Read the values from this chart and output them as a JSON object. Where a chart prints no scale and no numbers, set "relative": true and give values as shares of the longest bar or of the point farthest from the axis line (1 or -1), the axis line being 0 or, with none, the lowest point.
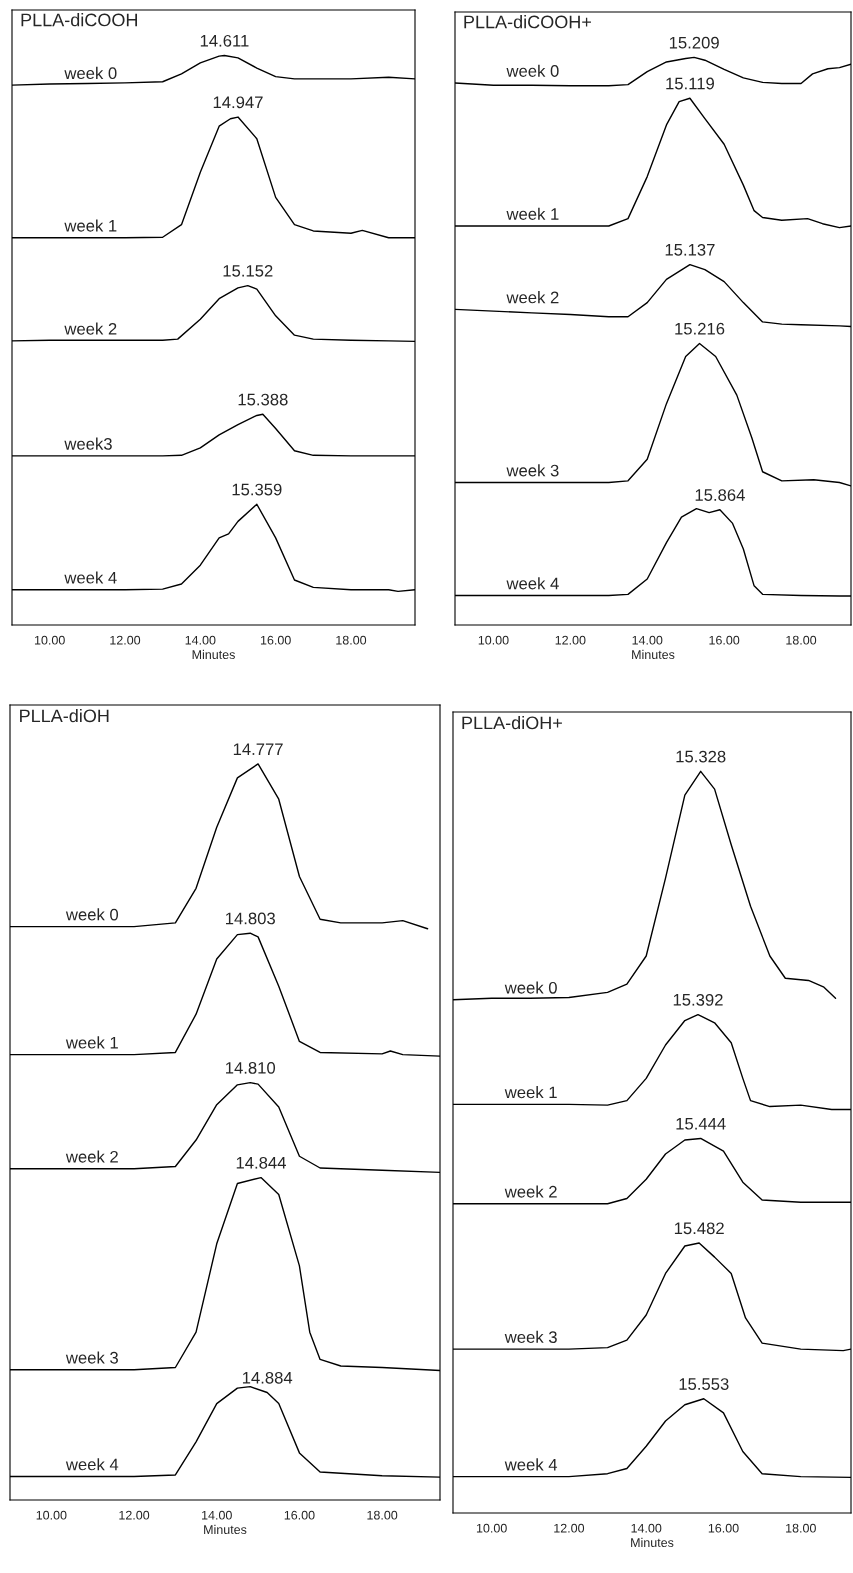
{
  "chart_data": [
    {
      "type": "line",
      "title": "PLLA-diCOOH",
      "xlabel": "Minutes",
      "relative": true,
      "xlim": [
        9.0,
        19.7
      ],
      "xticks": [
        {
          "value": 10,
          "label": "10.00"
        },
        {
          "value": 12,
          "label": "12.00"
        },
        {
          "value": 14,
          "label": "14.00"
        },
        {
          "value": 16,
          "label": "16.00"
        },
        {
          "value": 18,
          "label": "18.00"
        }
      ],
      "tick_labels": "x",
      "grid": false,
      "legend": false,
      "series": [
        {
          "name": "week 0",
          "color": "#000000",
          "x": [
            9.0,
            10,
            11,
            12,
            13,
            13.5,
            14,
            14.5,
            14.64,
            15,
            15.5,
            16,
            16.5,
            17,
            18,
            19,
            19.7
          ],
          "values": [
            0.948,
            0.95,
            0.951,
            0.952,
            0.954,
            0.968,
            0.987,
            0.999,
            1.0,
            0.996,
            0.978,
            0.963,
            0.959,
            0.959,
            0.959,
            0.962,
            0.959
          ]
        },
        {
          "name": "week 1",
          "color": "#000000",
          "x": [
            9.0,
            10,
            11,
            12,
            13,
            13.5,
            14,
            14.5,
            14.8,
            15.0,
            15.5,
            16,
            16.5,
            17,
            18,
            18.3,
            19,
            19.7
          ],
          "values": [
            0.68,
            0.68,
            0.68,
            0.68,
            0.681,
            0.703,
            0.795,
            0.876,
            0.889,
            0.892,
            0.854,
            0.751,
            0.703,
            0.692,
            0.688,
            0.693,
            0.68,
            0.68
          ]
        },
        {
          "name": "week 2",
          "color": "#000000",
          "x": [
            9.0,
            10,
            11,
            12,
            13,
            13.4,
            14,
            14.5,
            15,
            15.26,
            15.5,
            16,
            16.5,
            17,
            18,
            19,
            19.7
          ],
          "values": [
            0.499,
            0.5,
            0.5,
            0.5,
            0.5,
            0.502,
            0.537,
            0.573,
            0.592,
            0.596,
            0.59,
            0.543,
            0.509,
            0.502,
            0.5,
            0.499,
            0.498
          ]
        },
        {
          "name": "week3",
          "color": "#000000",
          "x": [
            9.0,
            10,
            11,
            12,
            13,
            13.5,
            14,
            14.5,
            15,
            15.5,
            15.66,
            16,
            16.5,
            17,
            18,
            19,
            19.7
          ],
          "values": [
            0.297,
            0.297,
            0.297,
            0.297,
            0.297,
            0.298,
            0.311,
            0.334,
            0.352,
            0.368,
            0.37,
            0.345,
            0.306,
            0.298,
            0.297,
            0.297,
            0.297
          ]
        },
        {
          "name": "week 4",
          "color": "#000000",
          "x": [
            9.0,
            10,
            11,
            12,
            13,
            13.5,
            14,
            14.5,
            14.75,
            15,
            15.5,
            16,
            16.5,
            17,
            18,
            19,
            19.25,
            19.7
          ],
          "values": [
            0.062,
            0.062,
            0.062,
            0.062,
            0.063,
            0.072,
            0.105,
            0.153,
            0.16,
            0.182,
            0.212,
            0.153,
            0.079,
            0.066,
            0.062,
            0.062,
            0.059,
            0.062
          ]
        }
      ],
      "annotations": [
        {
          "text": "14.611",
          "x": 14.64,
          "y": 1.0
        },
        {
          "text": "14.947",
          "x": 15.0,
          "y": 0.892
        },
        {
          "text": "15.152",
          "x": 15.26,
          "y": 0.596
        },
        {
          "text": "15.388",
          "x": 15.66,
          "y": 0.37
        },
        {
          "text": "15.359",
          "x": 15.5,
          "y": 0.212
        }
      ]
    },
    {
      "type": "line",
      "title": "PLLA-diCOOH+",
      "xlabel": "Minutes",
      "relative": true,
      "xlim": [
        9.0,
        19.3
      ],
      "xticks": [
        {
          "value": 10,
          "label": "10.00"
        },
        {
          "value": 12,
          "label": "12.00"
        },
        {
          "value": 14,
          "label": "14.00"
        },
        {
          "value": 16,
          "label": "16.00"
        },
        {
          "value": 18,
          "label": "18.00"
        }
      ],
      "tick_labels": "x",
      "grid": false,
      "legend": false,
      "series": [
        {
          "name": "week 0",
          "color": "#000000",
          "x": [
            9.0,
            10,
            11,
            12,
            13,
            13.5,
            14,
            14.5,
            15,
            15.22,
            15.5,
            16,
            16.5,
            17,
            17.5,
            18,
            18.3,
            18.7,
            19,
            19.3
          ],
          "values": [
            0.955,
            0.951,
            0.951,
            0.95,
            0.95,
            0.952,
            0.975,
            0.992,
            0.998,
            1.0,
            0.995,
            0.979,
            0.964,
            0.956,
            0.954,
            0.954,
            0.971,
            0.98,
            0.982,
            0.988
          ]
        },
        {
          "name": "week 1",
          "color": "#000000",
          "x": [
            9.0,
            10,
            11,
            12,
            13,
            13.5,
            14,
            14.5,
            14.83,
            15.11,
            15.5,
            16,
            16.5,
            16.78,
            17,
            17.5,
            18.17,
            18.56,
            19,
            19.3
          ],
          "values": [
            0.703,
            0.703,
            0.703,
            0.703,
            0.703,
            0.716,
            0.79,
            0.881,
            0.922,
            0.928,
            0.892,
            0.847,
            0.775,
            0.73,
            0.718,
            0.713,
            0.716,
            0.707,
            0.7,
            0.703
          ]
        },
        {
          "name": "week 2",
          "color": "#000000",
          "x": [
            9.0,
            10,
            11,
            12,
            13,
            13.5,
            14,
            14.5,
            15.11,
            15.5,
            16,
            16.5,
            17,
            17.5,
            18,
            19,
            19.3
          ],
          "values": [
            0.556,
            0.553,
            0.55,
            0.547,
            0.543,
            0.543,
            0.568,
            0.609,
            0.635,
            0.626,
            0.605,
            0.568,
            0.534,
            0.53,
            0.529,
            0.527,
            0.526
          ]
        },
        {
          "name": "week 3",
          "color": "#000000",
          "x": [
            9.0,
            10,
            11,
            12,
            13,
            13.5,
            14,
            14.5,
            15,
            15.36,
            15.78,
            16.33,
            16.72,
            17,
            17.5,
            18.33,
            19,
            19.3
          ],
          "values": [
            0.251,
            0.251,
            0.251,
            0.251,
            0.251,
            0.254,
            0.292,
            0.39,
            0.473,
            0.496,
            0.473,
            0.405,
            0.33,
            0.27,
            0.254,
            0.256,
            0.251,
            0.245
          ]
        },
        {
          "name": "week 4",
          "color": "#000000",
          "x": [
            9.0,
            10,
            11,
            12,
            13,
            13.5,
            14,
            14.5,
            14.89,
            15.28,
            15.61,
            15.89,
            16.22,
            16.5,
            16.78,
            17,
            18,
            19,
            19.3
          ],
          "values": [
            0.052,
            0.052,
            0.052,
            0.052,
            0.052,
            0.054,
            0.081,
            0.145,
            0.19,
            0.205,
            0.198,
            0.203,
            0.179,
            0.134,
            0.069,
            0.054,
            0.052,
            0.051,
            0.051
          ]
        }
      ],
      "annotations": [
        {
          "text": "15.209",
          "x": 15.22,
          "y": 1.0
        },
        {
          "text": "15.119",
          "x": 15.11,
          "y": 0.928
        },
        {
          "text": "15.137",
          "x": 15.11,
          "y": 0.635
        },
        {
          "text": "15.216",
          "x": 15.36,
          "y": 0.496
        },
        {
          "text": "15.864",
          "x": 15.89,
          "y": 0.203
        }
      ]
    },
    {
      "type": "line",
      "title": "PLLA-diOH",
      "xlabel": "Minutes",
      "relative": true,
      "xlim": [
        9.0,
        19.4
      ],
      "xticks": [
        {
          "value": 10,
          "label": "10.00"
        },
        {
          "value": 12,
          "label": "12.00"
        },
        {
          "value": 14,
          "label": "14.00"
        },
        {
          "value": 16,
          "label": "16.00"
        },
        {
          "value": 18,
          "label": "18.00"
        }
      ],
      "tick_labels": "x",
      "grid": false,
      "legend": false,
      "series": [
        {
          "name": "week 0",
          "color": "#000000",
          "x": [
            9.0,
            10,
            11,
            12,
            13,
            13.5,
            14,
            14.5,
            15,
            15.5,
            16,
            16.5,
            17,
            18,
            18.5,
            19.1
          ],
          "values": [
            0.779,
            0.779,
            0.779,
            0.779,
            0.784,
            0.831,
            0.914,
            0.981,
            1.0,
            0.952,
            0.847,
            0.789,
            0.784,
            0.784,
            0.787,
            0.776
          ]
        },
        {
          "name": "week 1",
          "color": "#000000",
          "x": [
            9.0,
            10,
            11,
            12,
            13,
            13.5,
            14,
            14.5,
            14.81,
            15,
            15.5,
            16,
            16.5,
            18,
            18.2,
            18.5,
            19.4
          ],
          "values": [
            0.605,
            0.605,
            0.605,
            0.605,
            0.608,
            0.66,
            0.735,
            0.768,
            0.77,
            0.765,
            0.698,
            0.623,
            0.608,
            0.606,
            0.61,
            0.605,
            0.603
          ]
        },
        {
          "name": "week 2",
          "color": "#000000",
          "x": [
            9.0,
            10,
            11,
            12,
            13,
            13.5,
            14,
            14.5,
            14.81,
            15,
            15.5,
            16,
            16.5,
            18,
            19.4
          ],
          "values": [
            0.45,
            0.45,
            0.45,
            0.45,
            0.453,
            0.489,
            0.537,
            0.564,
            0.567,
            0.565,
            0.534,
            0.467,
            0.451,
            0.448,
            0.445
          ]
        },
        {
          "name": "week 3",
          "color": "#000000",
          "x": [
            9.0,
            10,
            11,
            12,
            13,
            13.5,
            14,
            14.5,
            15.07,
            15.5,
            16,
            16.25,
            16.5,
            17,
            18,
            19.4
          ],
          "values": [
            0.177,
            0.177,
            0.177,
            0.177,
            0.18,
            0.228,
            0.348,
            0.43,
            0.438,
            0.415,
            0.318,
            0.228,
            0.191,
            0.182,
            0.18,
            0.176
          ]
        },
        {
          "name": "week 4",
          "color": "#000000",
          "x": [
            9.0,
            10,
            11,
            12,
            13,
            13.5,
            14,
            14.5,
            14.81,
            15.22,
            15.5,
            16,
            16.5,
            18,
            19.4
          ],
          "values": [
            0.032,
            0.032,
            0.032,
            0.032,
            0.034,
            0.079,
            0.131,
            0.152,
            0.154,
            0.146,
            0.131,
            0.064,
            0.038,
            0.033,
            0.031
          ]
        }
      ],
      "annotations": [
        {
          "text": "14.777",
          "x": 15.0,
          "y": 1.0
        },
        {
          "text": "14.803",
          "x": 14.81,
          "y": 0.77
        },
        {
          "text": "14.810",
          "x": 14.81,
          "y": 0.567
        },
        {
          "text": "14.844",
          "x": 15.07,
          "y": 0.438
        },
        {
          "text": "14.884",
          "x": 15.22,
          "y": 0.146
        }
      ]
    },
    {
      "type": "line",
      "title": "PLLA-diOH+",
      "xlabel": "Minutes",
      "relative": true,
      "xlim": [
        9.0,
        19.3
      ],
      "xticks": [
        {
          "value": 10,
          "label": "10.00"
        },
        {
          "value": 12,
          "label": "12.00"
        },
        {
          "value": 14,
          "label": "14.00"
        },
        {
          "value": 16,
          "label": "16.00"
        },
        {
          "value": 18,
          "label": "18.00"
        }
      ],
      "tick_labels": "x",
      "grid": false,
      "legend": false,
      "series": [
        {
          "name": "week 0",
          "color": "#000000",
          "x": [
            9.0,
            10,
            11,
            12,
            13,
            13.5,
            14,
            14.5,
            15,
            15.41,
            15.77,
            16.2,
            16.7,
            17.2,
            17.6,
            18.2,
            18.6,
            18.9
          ],
          "values": [
            0.692,
            0.694,
            0.694,
            0.695,
            0.702,
            0.713,
            0.751,
            0.856,
            0.968,
            1.0,
            0.976,
            0.901,
            0.818,
            0.751,
            0.721,
            0.718,
            0.709,
            0.694
          ]
        },
        {
          "name": "week 1",
          "color": "#000000",
          "x": [
            9.0,
            10,
            11,
            12,
            13,
            13.5,
            14,
            14.5,
            15,
            15.34,
            15.77,
            16.2,
            16.5,
            16.7,
            17.2,
            18,
            18.8,
            19.3
          ],
          "values": [
            0.551,
            0.551,
            0.551,
            0.551,
            0.55,
            0.556,
            0.586,
            0.631,
            0.664,
            0.672,
            0.661,
            0.634,
            0.586,
            0.556,
            0.548,
            0.55,
            0.544,
            0.544
          ]
        },
        {
          "name": "week 2",
          "color": "#000000",
          "x": [
            9.0,
            10,
            11,
            12,
            13,
            13.5,
            14,
            14.5,
            15,
            15.41,
            16,
            16.5,
            17,
            18,
            19.3
          ],
          "values": [
            0.417,
            0.417,
            0.417,
            0.417,
            0.417,
            0.424,
            0.45,
            0.484,
            0.503,
            0.505,
            0.488,
            0.446,
            0.422,
            0.419,
            0.419
          ]
        },
        {
          "name": "week 3",
          "color": "#000000",
          "x": [
            9.0,
            10,
            11,
            12,
            13,
            13.5,
            14,
            14.5,
            15,
            15.37,
            15.77,
            16.2,
            16.57,
            17,
            18,
            19.1,
            19.3
          ],
          "values": [
            0.221,
            0.221,
            0.221,
            0.221,
            0.223,
            0.233,
            0.267,
            0.323,
            0.36,
            0.364,
            0.345,
            0.323,
            0.263,
            0.229,
            0.221,
            0.219,
            0.221
          ]
        },
        {
          "name": "week 4",
          "color": "#000000",
          "x": [
            9.0,
            10,
            11,
            12,
            13,
            13.5,
            14,
            14.5,
            15,
            15.49,
            16,
            16.5,
            17,
            18,
            19.3
          ],
          "values": [
            0.049,
            0.049,
            0.049,
            0.049,
            0.053,
            0.06,
            0.09,
            0.124,
            0.146,
            0.154,
            0.135,
            0.083,
            0.053,
            0.049,
            0.048
          ]
        }
      ],
      "annotations": [
        {
          "text": "15.328",
          "x": 15.41,
          "y": 1.0
        },
        {
          "text": "15.392",
          "x": 15.34,
          "y": 0.672
        },
        {
          "text": "15.444",
          "x": 15.41,
          "y": 0.505
        },
        {
          "text": "15.482",
          "x": 15.37,
          "y": 0.364
        },
        {
          "text": "15.553",
          "x": 15.49,
          "y": 0.154
        }
      ]
    }
  ]
}
